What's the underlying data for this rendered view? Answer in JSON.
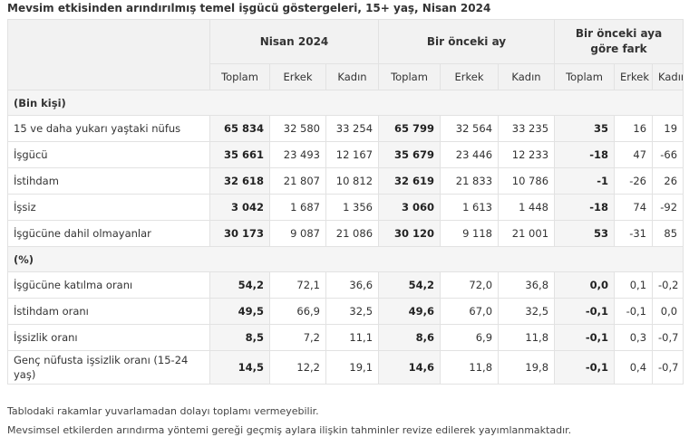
{
  "title": "Mevsim etkisinden arındırılmış temel işgücü göstergeleri, 15+ yaş, Nisan 2024",
  "headers": {
    "groups": [
      "Nisan 2024",
      "Bir önceki ay",
      "Bir önceki aya göre fark"
    ],
    "sub": [
      "Toplam",
      "Erkek",
      "Kadın",
      "Toplam",
      "Erkek",
      "Kadın",
      "Toplam",
      "Erkek",
      "Kadın"
    ]
  },
  "sections": [
    {
      "label": "(Bin kişi)",
      "rows": [
        {
          "label": "15 ve daha yukarı yaştaki nüfus",
          "values": [
            "65 834",
            "32 580",
            "33 254",
            "65 799",
            "32 564",
            "33 235",
            "35",
            "16",
            "19"
          ]
        },
        {
          "label": "İşgücü",
          "values": [
            "35 661",
            "23 493",
            "12 167",
            "35 679",
            "23 446",
            "12 233",
            "-18",
            "47",
            "-66"
          ]
        },
        {
          "label": "İstihdam",
          "values": [
            "32 618",
            "21 807",
            "10 812",
            "32 619",
            "21 833",
            "10 786",
            "-1",
            "-26",
            "26"
          ]
        },
        {
          "label": "İşsiz",
          "values": [
            "3 042",
            "1 687",
            "1 356",
            "3 060",
            "1 613",
            "1 448",
            "-18",
            "74",
            "-92"
          ]
        },
        {
          "label": "İşgücüne dahil olmayanlar",
          "values": [
            "30 173",
            "9 087",
            "21 086",
            "30 120",
            "9 118",
            "21 001",
            "53",
            "-31",
            "85"
          ]
        }
      ]
    },
    {
      "label": "(%)",
      "rows": [
        {
          "label": "İşgücüne katılma oranı",
          "values": [
            "54,2",
            "72,1",
            "36,6",
            "54,2",
            "72,0",
            "36,8",
            "0,0",
            "0,1",
            "-0,2"
          ]
        },
        {
          "label": "İstihdam oranı",
          "values": [
            "49,5",
            "66,9",
            "32,5",
            "49,6",
            "67,0",
            "32,5",
            "-0,1",
            "-0,1",
            "0,0"
          ]
        },
        {
          "label": "İşsizlik oranı",
          "values": [
            "8,5",
            "7,2",
            "11,1",
            "8,6",
            "6,9",
            "11,8",
            "-0,1",
            "0,3",
            "-0,7"
          ]
        },
        {
          "label": "Genç nüfusta işsizlik oranı (15-24 yaş)",
          "values": [
            "14,5",
            "12,2",
            "19,1",
            "14,6",
            "11,8",
            "19,8",
            "-0,1",
            "0,4",
            "-0,7"
          ]
        }
      ]
    }
  ],
  "notes": [
    "Tablodaki rakamlar yuvarlamadan dolayı toplamı vermeyebilir.",
    "Mevsimsel etkilerden arındırma yöntemi gereği geçmiş aylara ilişkin tahminler revize edilerek yayımlanmaktadır."
  ]
}
